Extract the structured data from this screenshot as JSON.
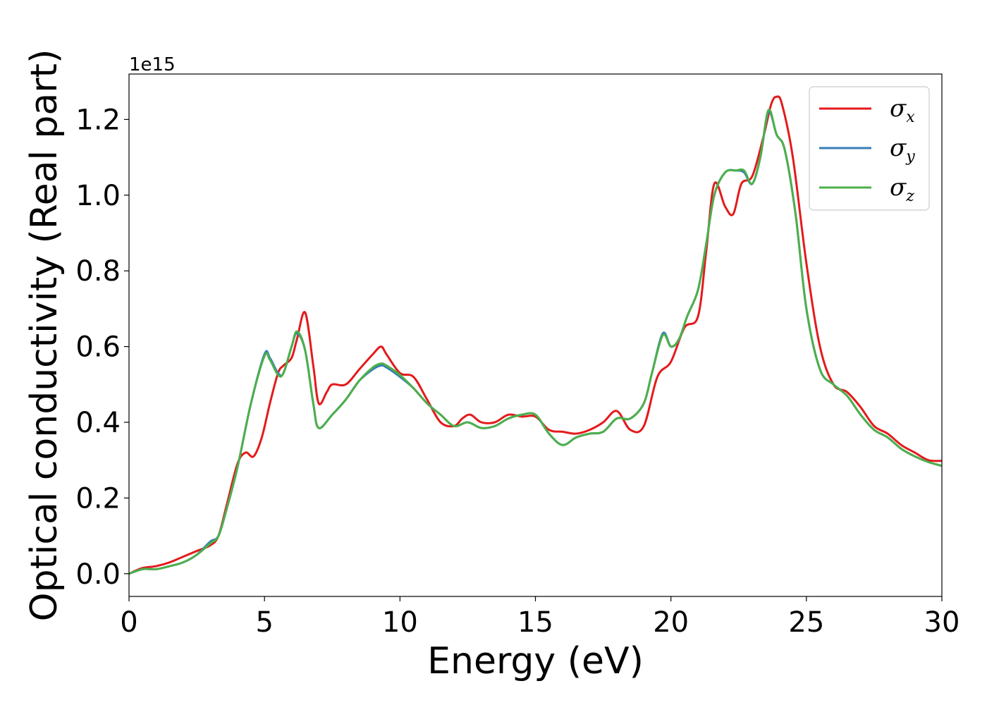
{
  "chart_data": {
    "type": "line",
    "title": "",
    "xlabel": "Energy (eV)",
    "ylabel": "Optical conductivity (Real part)",
    "y_offset_label": "1e15",
    "xlim": [
      0,
      30
    ],
    "ylim": [
      -0.06,
      1.32
    ],
    "xticks": [
      0,
      5,
      10,
      15,
      20,
      25,
      30
    ],
    "yticks": [
      0.0,
      0.2,
      0.4,
      0.6,
      0.8,
      1.0,
      1.2
    ],
    "xtick_labels": [
      "0",
      "5",
      "10",
      "15",
      "20",
      "25",
      "30"
    ],
    "ytick_labels": [
      "0.0",
      "0.2",
      "0.4",
      "0.6",
      "0.8",
      "1.0",
      "1.2"
    ],
    "grid": false,
    "legend_position": "top-right",
    "series": [
      {
        "name": "σx",
        "symbol": "σ",
        "subscript": "x",
        "color": "#e41a1c",
        "x": [
          0,
          0.5,
          1.0,
          1.5,
          2.0,
          2.5,
          3.0,
          3.3,
          3.6,
          4.0,
          4.3,
          4.6,
          4.9,
          5.2,
          5.5,
          5.7,
          6.0,
          6.2,
          6.5,
          6.8,
          7.0,
          7.3,
          7.5,
          8.0,
          8.5,
          9.0,
          9.3,
          9.5,
          10.0,
          10.5,
          11.0,
          11.5,
          12.0,
          12.3,
          12.6,
          13.0,
          13.5,
          14.0,
          14.5,
          15.0,
          15.5,
          16.0,
          16.5,
          17.0,
          17.5,
          18.0,
          18.5,
          19.0,
          19.5,
          20.0,
          20.5,
          21.0,
          21.3,
          21.6,
          22.0,
          22.3,
          22.6,
          23.0,
          23.4,
          23.7,
          23.9,
          24.1,
          24.5,
          25.0,
          25.5,
          26.0,
          26.5,
          27.0,
          27.5,
          28.0,
          28.5,
          29.0,
          29.5,
          30.0
        ],
        "values": [
          0.0,
          0.015,
          0.02,
          0.03,
          0.045,
          0.06,
          0.075,
          0.1,
          0.18,
          0.29,
          0.32,
          0.31,
          0.36,
          0.45,
          0.53,
          0.55,
          0.57,
          0.62,
          0.69,
          0.55,
          0.45,
          0.48,
          0.5,
          0.5,
          0.54,
          0.58,
          0.6,
          0.58,
          0.53,
          0.52,
          0.46,
          0.4,
          0.39,
          0.41,
          0.42,
          0.4,
          0.4,
          0.42,
          0.415,
          0.415,
          0.38,
          0.375,
          0.37,
          0.38,
          0.4,
          0.43,
          0.38,
          0.39,
          0.52,
          0.56,
          0.65,
          0.68,
          0.85,
          1.03,
          0.97,
          0.95,
          1.03,
          1.05,
          1.15,
          1.24,
          1.26,
          1.24,
          1.1,
          0.82,
          0.6,
          0.5,
          0.48,
          0.44,
          0.39,
          0.37,
          0.34,
          0.32,
          0.3,
          0.298
        ]
      },
      {
        "name": "σy",
        "symbol": "σ",
        "subscript": "y",
        "color": "#377eb8",
        "x": [
          0,
          0.5,
          1.0,
          1.5,
          2.0,
          2.5,
          3.0,
          3.3,
          3.6,
          4.0,
          4.5,
          5.0,
          5.2,
          5.5,
          5.7,
          6.0,
          6.2,
          6.5,
          6.8,
          7.0,
          7.5,
          8.0,
          8.5,
          9.0,
          9.3,
          9.5,
          10.0,
          10.5,
          11.0,
          11.5,
          12.0,
          12.5,
          13.0,
          13.5,
          14.0,
          14.5,
          15.0,
          15.5,
          16.0,
          16.5,
          17.0,
          17.5,
          18.0,
          18.5,
          19.0,
          19.3,
          19.7,
          20.0,
          20.3,
          20.6,
          21.0,
          21.3,
          21.6,
          22.0,
          22.4,
          22.7,
          23.0,
          23.3,
          23.6,
          23.9,
          24.2,
          24.6,
          25.0,
          25.5,
          26.0,
          26.5,
          27.0,
          27.5,
          28.0,
          28.5,
          29.0,
          29.5,
          30.0
        ],
        "values": [
          0.0,
          0.012,
          0.012,
          0.02,
          0.03,
          0.05,
          0.085,
          0.1,
          0.17,
          0.28,
          0.45,
          0.58,
          0.57,
          0.53,
          0.53,
          0.6,
          0.635,
          0.59,
          0.45,
          0.385,
          0.42,
          0.46,
          0.51,
          0.54,
          0.55,
          0.545,
          0.52,
          0.49,
          0.45,
          0.42,
          0.39,
          0.4,
          0.385,
          0.39,
          0.41,
          0.42,
          0.42,
          0.37,
          0.34,
          0.36,
          0.37,
          0.375,
          0.41,
          0.41,
          0.45,
          0.53,
          0.635,
          0.6,
          0.62,
          0.68,
          0.75,
          0.87,
          1.0,
          1.06,
          1.065,
          1.06,
          1.03,
          1.1,
          1.22,
          1.16,
          1.12,
          0.95,
          0.7,
          0.54,
          0.5,
          0.47,
          0.42,
          0.38,
          0.36,
          0.33,
          0.31,
          0.295,
          0.285
        ]
      },
      {
        "name": "σz",
        "symbol": "σ",
        "subscript": "z",
        "color": "#4daf4a",
        "x": [
          0,
          0.5,
          1.0,
          1.5,
          2.0,
          2.5,
          3.0,
          3.3,
          3.6,
          4.0,
          4.5,
          5.0,
          5.2,
          5.5,
          5.7,
          6.0,
          6.2,
          6.5,
          6.8,
          7.0,
          7.5,
          8.0,
          8.5,
          9.0,
          9.3,
          9.5,
          10.0,
          10.5,
          11.0,
          11.5,
          12.0,
          12.5,
          13.0,
          13.5,
          14.0,
          14.5,
          15.0,
          15.5,
          16.0,
          16.5,
          17.0,
          17.5,
          18.0,
          18.5,
          19.0,
          19.3,
          19.7,
          20.0,
          20.3,
          20.6,
          21.0,
          21.3,
          21.6,
          22.0,
          22.4,
          22.7,
          23.0,
          23.3,
          23.6,
          23.9,
          24.2,
          24.6,
          25.0,
          25.5,
          26.0,
          26.5,
          27.0,
          27.5,
          28.0,
          28.5,
          29.0,
          29.5,
          30.0
        ],
        "values": [
          0.0,
          0.012,
          0.012,
          0.02,
          0.03,
          0.05,
          0.08,
          0.1,
          0.17,
          0.28,
          0.45,
          0.575,
          0.565,
          0.525,
          0.53,
          0.6,
          0.64,
          0.59,
          0.45,
          0.385,
          0.42,
          0.46,
          0.51,
          0.545,
          0.555,
          0.55,
          0.525,
          0.49,
          0.45,
          0.42,
          0.39,
          0.4,
          0.385,
          0.39,
          0.41,
          0.42,
          0.42,
          0.37,
          0.34,
          0.36,
          0.37,
          0.375,
          0.41,
          0.41,
          0.45,
          0.53,
          0.63,
          0.6,
          0.62,
          0.68,
          0.75,
          0.87,
          1.0,
          1.06,
          1.065,
          1.065,
          1.03,
          1.1,
          1.225,
          1.16,
          1.12,
          0.95,
          0.7,
          0.54,
          0.5,
          0.47,
          0.42,
          0.38,
          0.36,
          0.33,
          0.31,
          0.295,
          0.285
        ]
      }
    ]
  }
}
